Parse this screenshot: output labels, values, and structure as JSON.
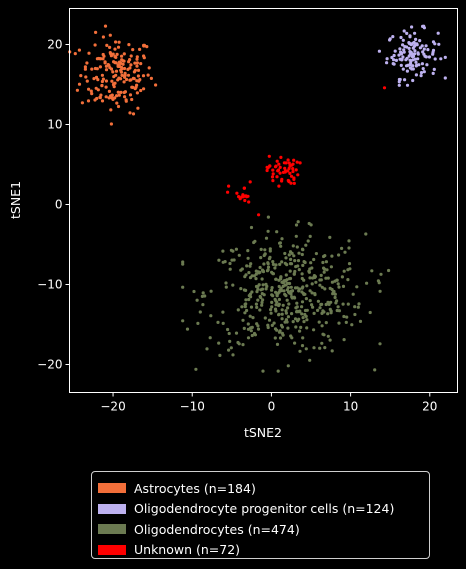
{
  "chart_data": {
    "type": "scatter",
    "title": "",
    "xlabel": "tSNE2",
    "ylabel": "tSNE1",
    "xlim": [
      -25.5,
      23.5
    ],
    "ylim": [
      -23.5,
      24.5
    ],
    "xticks": [
      -20,
      -10,
      0,
      10,
      20
    ],
    "yticks": [
      -20,
      -10,
      0,
      10,
      20
    ],
    "grid": false,
    "legend_position": "below",
    "series": [
      {
        "name": "Astrocytes (n=184)",
        "color": "#f26f3a",
        "count": 184,
        "clusters": [
          {
            "cx": -19.5,
            "cy": 16.3,
            "sx": 2.3,
            "sy": 2.4
          }
        ]
      },
      {
        "name": "Oligodendrocyte progenitor cells (n=124)",
        "color": "#bdb1ef",
        "count": 124,
        "clusters": [
          {
            "cx": 17.8,
            "cy": 18.8,
            "sx": 1.6,
            "sy": 1.5
          }
        ]
      },
      {
        "name": "Oligodendrocytes (n=474)",
        "color": "#6b7a51",
        "count": 474,
        "clusters": [
          {
            "cx": 1.8,
            "cy": -11.2,
            "sx": 5.0,
            "sy": 3.7
          }
        ]
      },
      {
        "name": "Unknown (n=72)",
        "color": "#ff0000",
        "count": 72,
        "clusters": [
          {
            "cx": 1.4,
            "cy": 4.3,
            "sx": 1.0,
            "sy": 0.9,
            "n": 52
          },
          {
            "cx": -3.8,
            "cy": 1.2,
            "sx": 0.8,
            "sy": 0.8,
            "n": 18
          },
          {
            "cx": 14.3,
            "cy": 14.5,
            "sx": 0.1,
            "sy": 0.1,
            "n": 1
          },
          {
            "cx": -1.7,
            "cy": -1.5,
            "sx": 0.1,
            "sy": 0.1,
            "n": 1
          }
        ]
      }
    ]
  }
}
